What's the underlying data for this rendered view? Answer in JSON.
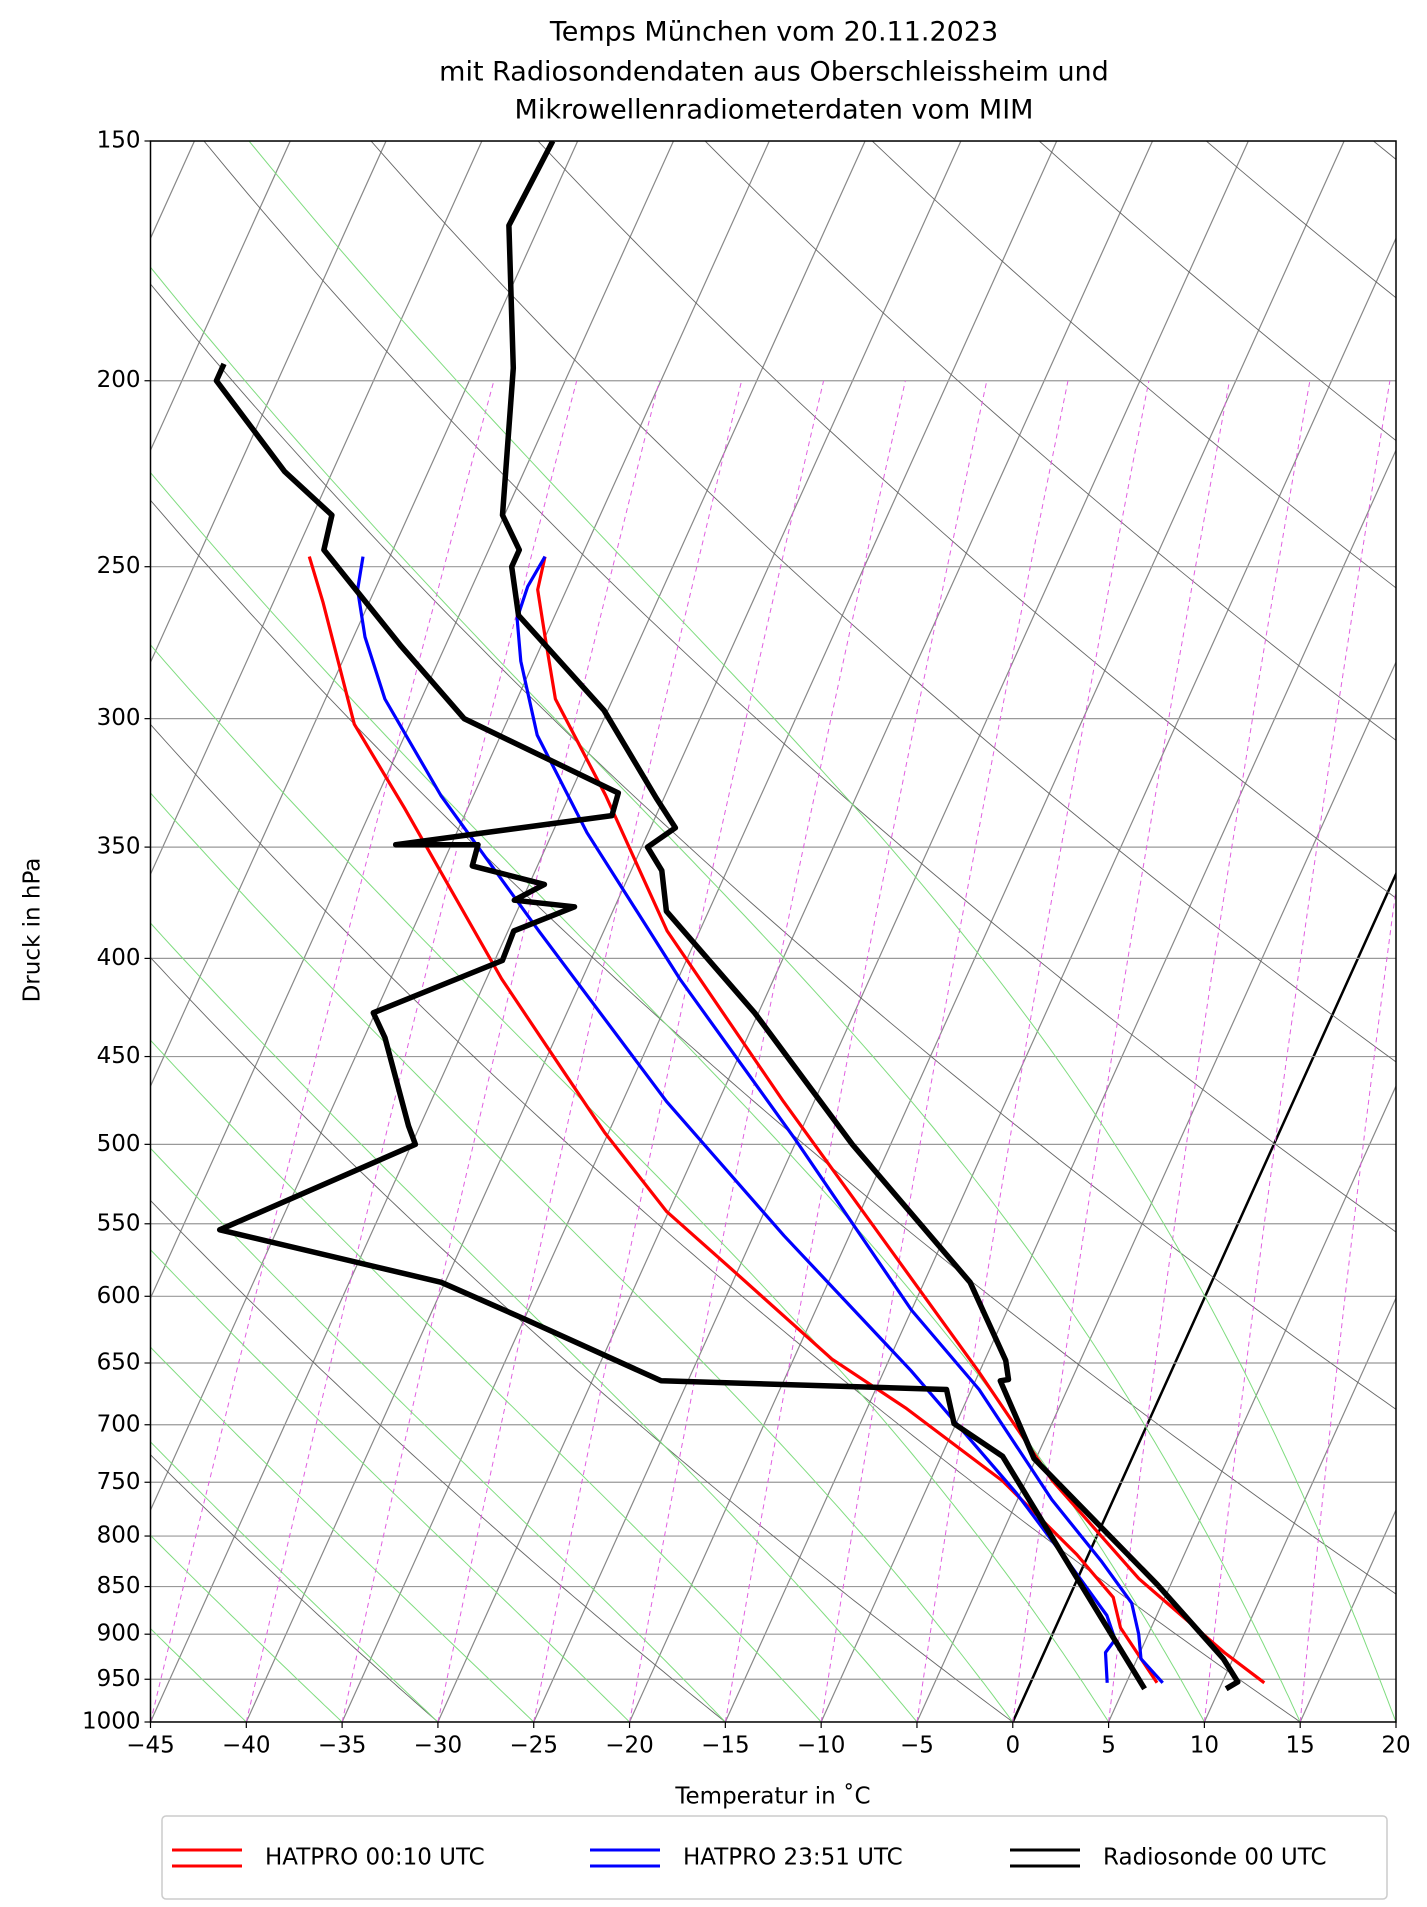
{
  "chart_data": {
    "type": "skewt",
    "title": [
      "Temps München vom 20.11.2023",
      "mit Radiosondendaten aus Oberschleissheim und",
      "Mikrowellenradiometerdaten vom MIM"
    ],
    "xlabel": "Temperatur in ˚C",
    "ylabel": "Druck in hPa",
    "xlim": [
      -45,
      20
    ],
    "xticks": [
      {
        "value": -45,
        "label": "−45"
      },
      {
        "value": -40,
        "label": "−40"
      },
      {
        "value": -35,
        "label": "−35"
      },
      {
        "value": -30,
        "label": "−30"
      },
      {
        "value": -25,
        "label": "−25"
      },
      {
        "value": -20,
        "label": "−20"
      },
      {
        "value": -15,
        "label": "−15"
      },
      {
        "value": -10,
        "label": "−10"
      },
      {
        "value": -5,
        "label": "−5"
      },
      0,
      5,
      10,
      15,
      20
    ],
    "ylim": [
      1000,
      150
    ],
    "yscale": "log",
    "yticks": [
      150,
      200,
      250,
      300,
      350,
      400,
      450,
      500,
      550,
      600,
      650,
      700,
      750,
      800,
      850,
      900,
      950,
      1000
    ],
    "grid": true,
    "legend": "bottom",
    "series": [
      {
        "name": "HATPRO 00:10 UTC",
        "color": "#ff0000",
        "temperature": {
          "p": [
            954,
            920,
            842,
            749,
            656,
            475,
            387,
            329,
            293,
            272,
            257,
            247
          ],
          "t": [
            12.2,
            9.4,
            3.2,
            -3.6,
            -10.1,
            -26.6,
            -36.7,
            -43.1,
            -48.0,
            -50.0,
            -51.5,
            -51.9
          ]
        },
        "dewpoint": {
          "p": [
            954,
            893,
            861,
            818,
            749,
            686,
            647,
            583,
            542,
            493,
            458,
            410,
            334,
            302,
            261,
            247
          ],
          "t": [
            6.6,
            3.4,
            2.3,
            -0.6,
            -6.2,
            -13.0,
            -18.0,
            -25.1,
            -30.1,
            -35.2,
            -38.8,
            -44.2,
            -53.3,
            -57.9,
            -62.4,
            -64.2
          ]
        }
      },
      {
        "name": "HATPRO 23:51 UTC",
        "color": "#0000ff",
        "temperature": {
          "p": [
            954,
            927,
            900,
            867,
            824,
            766,
            671,
            610,
            497,
            410,
            344,
            306,
            280,
            266,
            256,
            247
          ],
          "t": [
            6.9,
            5.2,
            4.5,
            3.4,
            0.8,
            -3.2,
            -9.6,
            -15.0,
            -25.1,
            -34.9,
            -43.2,
            -48.1,
            -50.7,
            -51.9,
            -52.1,
            -51.9
          ]
        },
        "dewpoint": {
          "p": [
            954,
            920,
            906,
            880,
            830,
            760,
            656,
            558,
            475,
            387,
            329,
            293,
            272,
            257,
            247
          ],
          "t": [
            4.0,
            3.2,
            3.4,
            2.4,
            -0.6,
            -5.2,
            -13.6,
            -23.4,
            -32.7,
            -43.4,
            -51.7,
            -56.9,
            -59.4,
            -60.9,
            -61.4
          ]
        }
      },
      {
        "name": "Radiosonde 00 UTC",
        "color": "#000000",
        "temperature": {
          "p": [
            961,
            953,
            927,
            848,
            729,
            664,
            663,
            648,
            590,
            500,
            427,
            378,
            360,
            350,
            342,
            330,
            297,
            265,
            250,
            245,
            235,
            197,
            166,
            150
          ],
          "t": [
            10.35,
            10.8,
            9.5,
            4.3,
            -5.1,
            -8.7,
            -8.3,
            -8.9,
            -12.6,
            -22.0,
            -30.2,
            -37.2,
            -38.4,
            -39.7,
            -38.7,
            -40.4,
            -45.2,
            -51.9,
            -53.4,
            -53.4,
            -55.1,
            -58.0,
            -61.6,
            -61.3
          ]
        },
        "dewpoint": {
          "p": [
            961,
            727,
            699,
            671,
            664,
            617,
            590,
            554,
            500,
            489,
            440,
            427,
            401,
            387,
            376,
            373,
            366,
            358,
            349,
            349,
            337,
            328,
            300,
            275,
            245,
            235,
            223,
            200,
            196
          ],
          "t": [
            6.1,
            -6.8,
            -10.1,
            -11.3,
            -26.4,
            -34.9,
            -40.2,
            -53.0,
            -44.8,
            -45.6,
            -48.9,
            -50.1,
            -44.6,
            -44.7,
            -42.1,
            -45.4,
            -44.2,
            -48.4,
            -48.6,
            -52.9,
            -42.3,
            -42.5,
            -52.3,
            -57.3,
            -63.6,
            -64.0,
            -67.5,
            -73.2,
            -73.2
          ]
        }
      }
    ]
  }
}
